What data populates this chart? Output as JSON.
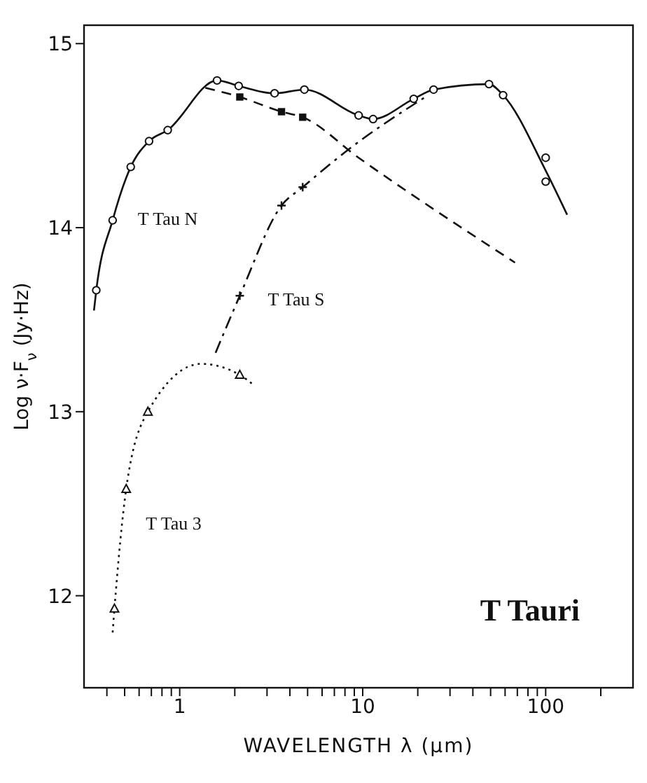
{
  "chart_data": {
    "type": "line",
    "xlabel": "WAVELENGTH  λ (μm)",
    "ylabel": "Log ν·F$_{ν}$ (Jy·Hz)",
    "log": "x",
    "xlim": [
      0.3,
      300
    ],
    "ylim": [
      11.5,
      15.1
    ],
    "xticks": [
      {
        "value": 0.4,
        "label": null
      },
      {
        "value": 0.5,
        "label": null
      },
      {
        "value": 0.6,
        "label": null
      },
      {
        "value": 0.7,
        "label": null
      },
      {
        "value": 0.8,
        "label": null
      },
      {
        "value": 0.9,
        "label": null
      },
      1,
      {
        "value": 2,
        "label": null
      },
      {
        "value": 3,
        "label": null
      },
      {
        "value": 4,
        "label": null
      },
      {
        "value": 5,
        "label": null
      },
      {
        "value": 6,
        "label": null
      },
      {
        "value": 7,
        "label": null
      },
      {
        "value": 8,
        "label": null
      },
      {
        "value": 9,
        "label": null
      },
      10,
      {
        "value": 20,
        "label": null
      },
      {
        "value": 30,
        "label": null
      },
      {
        "value": 40,
        "label": null
      },
      {
        "value": 50,
        "label": null
      },
      {
        "value": 60,
        "label": null
      },
      {
        "value": 70,
        "label": null
      },
      {
        "value": 80,
        "label": null
      },
      {
        "value": 90,
        "label": null
      },
      100,
      {
        "value": 200,
        "label": null
      }
    ],
    "yticks": [
      12,
      13,
      14,
      15
    ],
    "grid": false,
    "series": [
      {
        "name": "T Tau N",
        "type": "line",
        "line_style": "solid",
        "color": "#111111",
        "x": [
          0.34,
          0.35,
          0.43,
          0.54,
          0.68,
          0.86,
          1.6,
          2.1,
          3.3,
          4.8,
          9.5,
          11.4,
          19,
          24.4,
          49,
          58.5,
          100,
          131
        ],
        "values": [
          13.55,
          13.66,
          14.04,
          14.33,
          14.47,
          14.53,
          14.8,
          14.77,
          14.73,
          14.75,
          14.61,
          14.59,
          14.7,
          14.75,
          14.78,
          14.72,
          14.31,
          14.07
        ]
      },
      {
        "type": "scatter",
        "marker": "circle",
        "color": "#111111",
        "x": [
          0.35,
          0.43,
          0.54,
          0.68,
          0.86,
          1.6,
          2.1,
          3.3,
          4.8,
          9.5,
          11.4,
          19,
          24.4,
          49,
          58.5,
          100,
          100
        ],
        "values": [
          13.66,
          14.04,
          14.33,
          14.47,
          14.53,
          14.8,
          14.77,
          14.73,
          14.75,
          14.61,
          14.59,
          14.7,
          14.75,
          14.78,
          14.72,
          14.38,
          14.25
        ]
      },
      {
        "type": "line",
        "line_style": "dashed",
        "color": "#111111",
        "x": [
          1.38,
          2.13,
          3.6,
          4.7,
          9.5,
          68
        ],
        "values": [
          14.76,
          14.71,
          14.63,
          14.6,
          14.38,
          13.81
        ]
      },
      {
        "type": "scatter",
        "marker": "square",
        "color": "#111111",
        "x": [
          2.13,
          3.6,
          4.7
        ],
        "values": [
          14.71,
          14.63,
          14.6
        ]
      },
      {
        "name": "T Tau S",
        "type": "line",
        "line_style": "dashdot",
        "color": "#111111",
        "x": [
          1.57,
          2.13,
          3.6,
          4.7,
          8.5,
          22
        ],
        "values": [
          13.32,
          13.63,
          14.12,
          14.22,
          14.43,
          14.71
        ]
      },
      {
        "type": "scatter",
        "marker": "cross",
        "color": "#111111",
        "x": [
          2.13,
          3.6,
          4.7
        ],
        "values": [
          13.63,
          14.12,
          14.22
        ]
      },
      {
        "name": "T Tau 3",
        "type": "line",
        "line_style": "dotted",
        "color": "#111111",
        "x": [
          0.43,
          0.44,
          0.51,
          0.67,
          1.31,
          2.13,
          2.5
        ],
        "values": [
          11.8,
          11.93,
          12.58,
          13.0,
          13.26,
          13.2,
          13.15
        ]
      },
      {
        "type": "scatter",
        "marker": "triangle",
        "color": "#111111",
        "x": [
          0.44,
          0.51,
          0.67,
          2.13
        ],
        "values": [
          11.93,
          12.58,
          13.0,
          13.2
        ]
      }
    ],
    "annotations": [
      "T Tauri"
    ]
  }
}
